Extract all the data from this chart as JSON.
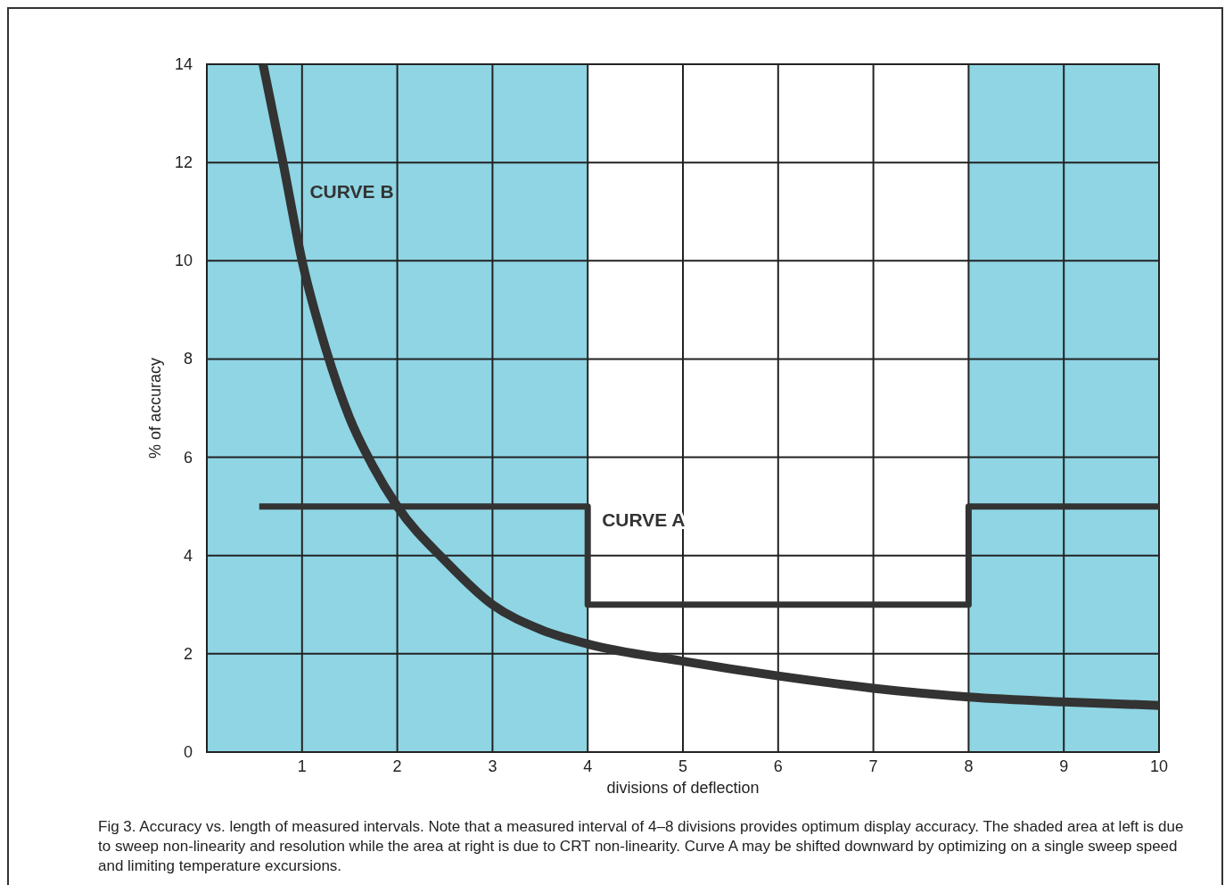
{
  "chart_data": {
    "type": "line",
    "xlabel": "divisions of deflection",
    "ylabel": "% of accuracy",
    "xlim": [
      0,
      10
    ],
    "ylim": [
      0,
      14
    ],
    "xticks": [
      {
        "value": 0,
        "label": null
      },
      1,
      2,
      3,
      4,
      5,
      6,
      7,
      8,
      9,
      10
    ],
    "yticks": [
      0,
      2,
      4,
      6,
      8,
      10,
      12,
      14
    ],
    "grid": true,
    "bands": [
      {
        "axis": "x",
        "from": 0,
        "to": 4,
        "color": "#8fd5e4"
      },
      {
        "axis": "x",
        "from": 8,
        "to": 10,
        "color": "#8fd5e4"
      }
    ],
    "series": [
      {
        "name": "CURVE B",
        "color": "#333333",
        "x": [
          0.59,
          0.8,
          1,
          1.25,
          1.5,
          1.75,
          2,
          2.5,
          3,
          3.5,
          4,
          5,
          6,
          7,
          8,
          9,
          10
        ],
        "values": [
          14,
          12,
          10,
          8.2,
          6.8,
          5.8,
          5,
          3.9,
          3,
          2.5,
          2.2,
          1.85,
          1.55,
          1.3,
          1.12,
          1.02,
          0.95
        ]
      },
      {
        "name": "CURVE A",
        "type": "step",
        "color": "#333333",
        "x": [
          0.55,
          4,
          8,
          10
        ],
        "values": [
          5,
          3,
          5,
          5
        ]
      }
    ],
    "annotations": [
      "Fig 3. Accuracy vs. length of measured intervals. Note that a measured interval of 4–8 divisions provides optimum display accuracy. The shaded area at left is due to sweep non-linearity and resolution while the area at right is due to CRT non-linearity. Curve A may be shifted downward by optimizing on a single sweep speed and limiting temperature excursions."
    ]
  }
}
